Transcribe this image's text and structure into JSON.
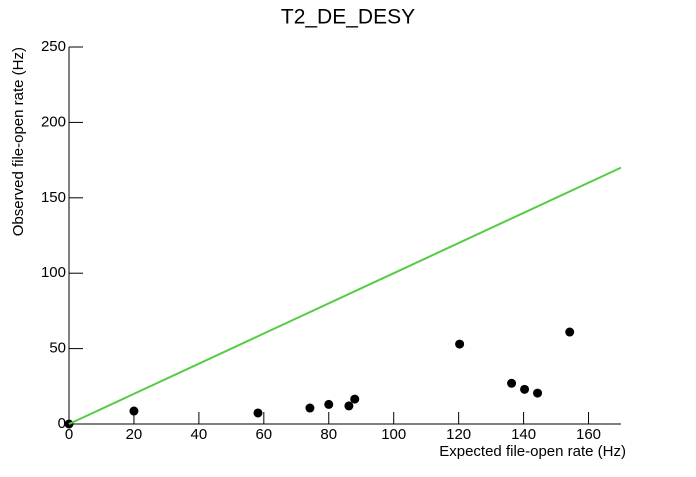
{
  "chart_data": {
    "type": "scatter",
    "title": "T2_DE_DESY",
    "x_label": "Expected file-open rate (Hz)",
    "y_label": "Observed file-open rate (Hz)",
    "xlim": [
      0,
      170
    ],
    "ylim": [
      0,
      250
    ],
    "xticks": [
      0,
      20,
      40,
      60,
      80,
      100,
      120,
      140,
      160
    ],
    "yticks": [
      0,
      50,
      100,
      150,
      200,
      250
    ],
    "series": [
      {
        "type": "scatter",
        "color": "#000000",
        "x": [
          0,
          20,
          58.2,
          74.2,
          80,
          86.2,
          88,
          120.3,
          136.3,
          140.3,
          144.3,
          154.2
        ],
        "values": [
          0,
          8.6,
          7.3,
          10.6,
          13,
          12,
          16.5,
          53,
          27,
          23,
          20.5,
          61
        ]
      },
      {
        "type": "line",
        "color": "#55cc44",
        "x": [
          0,
          170
        ],
        "values": [
          0,
          170
        ]
      }
    ]
  }
}
